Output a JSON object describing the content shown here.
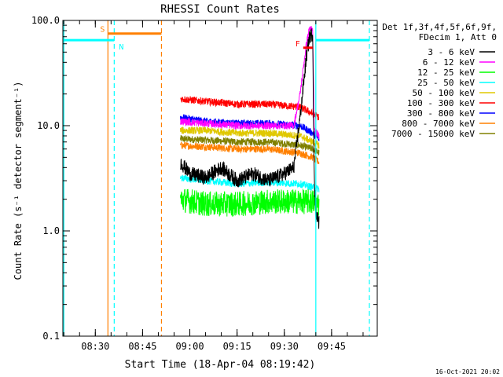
{
  "chart_data": {
    "type": "line",
    "title": "RHESSI Count Rates",
    "xlabel": "Start Time (18-Apr-04 08:19:42)",
    "ylabel": "Count Rate (s⁻¹ detector segment⁻¹)",
    "y_scale": "log",
    "ylim": [
      0.1,
      100.0
    ],
    "xlim": [
      "08:19:42",
      "09:59:30"
    ],
    "x_ticks": [
      "08:30",
      "08:45",
      "09:00",
      "09:15",
      "09:30",
      "09:45"
    ],
    "y_ticks": [
      "0.1",
      "1.0",
      "10.0",
      "100.0"
    ],
    "legend": {
      "position": "right",
      "header": [
        "Det 1f,3f,4f,5f,6f,9f,",
        "FDecim 1, Att 0"
      ],
      "entries": [
        {
          "label": "3 - 6 keV",
          "color": "#000000"
        },
        {
          "label": "6 - 12 keV",
          "color": "#ff00ff"
        },
        {
          "label": "12 - 25 keV",
          "color": "#00ff00"
        },
        {
          "label": "25 - 50 keV",
          "color": "#00ffff"
        },
        {
          "label": "50 - 100 keV",
          "color": "#e0c800"
        },
        {
          "label": "100 - 300 keV",
          "color": "#ff0000"
        },
        {
          "label": "300 - 800 keV",
          "color": "#0000ff"
        },
        {
          "label": "800 - 7000 keV",
          "color": "#ff8000"
        },
        {
          "label": "7000 - 15000 keV",
          "color": "#808000"
        }
      ]
    },
    "series": [
      {
        "name": "3 - 6 keV",
        "color": "#000000",
        "points": [
          [
            "08:57",
            "4.5"
          ],
          [
            "09:00",
            "3.5"
          ],
          [
            "09:05",
            "3.2"
          ],
          [
            "09:10",
            "4.0"
          ],
          [
            "09:15",
            "3.0"
          ],
          [
            "09:20",
            "3.5"
          ],
          [
            "09:25",
            "3.0"
          ],
          [
            "09:30",
            "3.5"
          ],
          [
            "09:33",
            "4.0"
          ],
          [
            "09:35",
            "12"
          ],
          [
            "09:37",
            "45"
          ],
          [
            "09:38",
            "70"
          ],
          [
            "09:39",
            "75"
          ],
          [
            "09:39:30",
            "3.0"
          ],
          [
            "09:40",
            "1.5"
          ],
          [
            "09:41",
            "1.2"
          ]
        ]
      },
      {
        "name": "6 - 12 keV",
        "color": "#ff00ff",
        "points": [
          [
            "08:57",
            "11"
          ],
          [
            "09:05",
            "10.5"
          ],
          [
            "09:15",
            "10"
          ],
          [
            "09:25",
            "10"
          ],
          [
            "09:33",
            "10"
          ],
          [
            "09:35",
            "20"
          ],
          [
            "09:37",
            "60"
          ],
          [
            "09:38",
            "85"
          ],
          [
            "09:39",
            "80"
          ],
          [
            "09:39:30",
            "9"
          ],
          [
            "09:41",
            "8"
          ]
        ]
      },
      {
        "name": "12 - 25 keV",
        "color": "#00ff00",
        "points": [
          [
            "08:57",
            "2.0"
          ],
          [
            "09:05",
            "1.8"
          ],
          [
            "09:15",
            "1.8"
          ],
          [
            "09:25",
            "1.9"
          ],
          [
            "09:35",
            "1.9"
          ],
          [
            "09:39",
            "1.9"
          ],
          [
            "09:41",
            "1.8"
          ]
        ]
      },
      {
        "name": "25 - 50 keV",
        "color": "#00ffff",
        "points": [
          [
            "08:57",
            "3.2"
          ],
          [
            "09:05",
            "3.0"
          ],
          [
            "09:15",
            "2.8"
          ],
          [
            "09:25",
            "2.9"
          ],
          [
            "09:35",
            "2.8"
          ],
          [
            "09:39",
            "2.6"
          ],
          [
            "09:41",
            "2.5"
          ]
        ]
      },
      {
        "name": "50 - 100 keV",
        "color": "#e0c800",
        "points": [
          [
            "08:57",
            "9"
          ],
          [
            "09:05",
            "9"
          ],
          [
            "09:15",
            "8.5"
          ],
          [
            "09:25",
            "8.5"
          ],
          [
            "09:35",
            "8"
          ],
          [
            "09:39",
            "7"
          ],
          [
            "09:41",
            "6.5"
          ]
        ]
      },
      {
        "name": "100 - 300 keV",
        "color": "#ff0000",
        "points": [
          [
            "08:57",
            "18"
          ],
          [
            "09:05",
            "17"
          ],
          [
            "09:15",
            "16"
          ],
          [
            "09:25",
            "16"
          ],
          [
            "09:35",
            "15"
          ],
          [
            "09:39",
            "13"
          ],
          [
            "09:41",
            "12"
          ]
        ]
      },
      {
        "name": "300 - 800 keV",
        "color": "#0000ff",
        "points": [
          [
            "08:57",
            "12"
          ],
          [
            "09:05",
            "11"
          ],
          [
            "09:15",
            "10.5"
          ],
          [
            "09:25",
            "10.5"
          ],
          [
            "09:35",
            "10"
          ],
          [
            "09:39",
            "8.5"
          ],
          [
            "09:41",
            "7.5"
          ]
        ]
      },
      {
        "name": "800 - 7000 keV",
        "color": "#ff8000",
        "points": [
          [
            "08:57",
            "6.5"
          ],
          [
            "09:05",
            "6.3"
          ],
          [
            "09:15",
            "6.0"
          ],
          [
            "09:25",
            "6.0"
          ],
          [
            "09:35",
            "5.5"
          ],
          [
            "09:39",
            "5.0"
          ],
          [
            "09:41",
            "4.5"
          ]
        ]
      },
      {
        "name": "7000 - 15000 keV",
        "color": "#808000",
        "points": [
          [
            "08:57",
            "7.5"
          ],
          [
            "09:05",
            "7.3"
          ],
          [
            "09:15",
            "7.0"
          ],
          [
            "09:25",
            "7.0"
          ],
          [
            "09:35",
            "6.5"
          ],
          [
            "09:39",
            "6.0"
          ],
          [
            "09:41",
            "5.5"
          ]
        ]
      }
    ],
    "markers": [
      {
        "label": "S",
        "color": "#ff8000",
        "x_start": "08:34",
        "x_end": "08:51",
        "y": "75",
        "type": "bar"
      },
      {
        "label": "N",
        "color": "#00ffff",
        "x_start": "08:19:42",
        "x_end": "08:36",
        "y": "65",
        "type": "bar"
      },
      {
        "label": "",
        "color": "#00ffff",
        "x_start": "09:40",
        "x_end": "09:57",
        "y": "65",
        "type": "bar"
      },
      {
        "label": "F",
        "color": "#ff0000",
        "x_start": "09:36",
        "x_end": "09:39",
        "y": "55",
        "type": "bar"
      }
    ],
    "vlines": [
      {
        "x": "08:34",
        "color": "#ff8000",
        "style": "solid"
      },
      {
        "x": "08:51",
        "color": "#ff8000",
        "style": "dashed"
      },
      {
        "x": "08:36",
        "color": "#00ffff",
        "style": "dashed"
      },
      {
        "x": "09:40",
        "color": "#00ffff",
        "style": "solid"
      },
      {
        "x": "09:57",
        "color": "#00ffff",
        "style": "dashed"
      },
      {
        "x": "08:20",
        "color": "#00ffff",
        "style": "solid"
      }
    ],
    "footer_timestamp": "16-Oct-2021 20:02"
  }
}
